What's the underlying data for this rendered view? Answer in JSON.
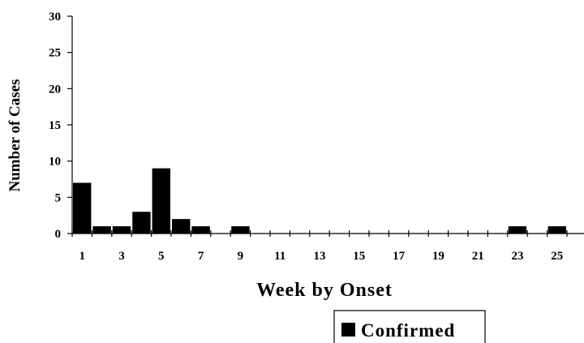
{
  "chart_data": {
    "type": "bar",
    "xlabel": "Week by Onset",
    "ylabel": "Number of Cases",
    "ylim": [
      0,
      30
    ],
    "yticks": [
      0,
      5,
      10,
      15,
      20,
      25,
      30
    ],
    "x_range": [
      1,
      26
    ],
    "x_tick_labels": [
      1,
      3,
      5,
      7,
      9,
      11,
      13,
      15,
      17,
      19,
      21,
      23,
      25
    ],
    "grid": false,
    "legend_position": "bottom-right",
    "series": [
      {
        "name": "Confirmed",
        "color": "#000000",
        "x": [
          1,
          2,
          3,
          4,
          5,
          6,
          7,
          8,
          9,
          10,
          11,
          12,
          13,
          14,
          15,
          16,
          17,
          18,
          19,
          20,
          21,
          22,
          23,
          24,
          25,
          26
        ],
        "values": [
          7,
          1,
          1,
          3,
          9,
          2,
          1,
          0,
          1,
          0,
          0,
          0,
          0,
          0,
          0,
          0,
          0,
          0,
          0,
          0,
          0,
          0,
          1,
          0,
          1,
          0
        ]
      }
    ]
  }
}
